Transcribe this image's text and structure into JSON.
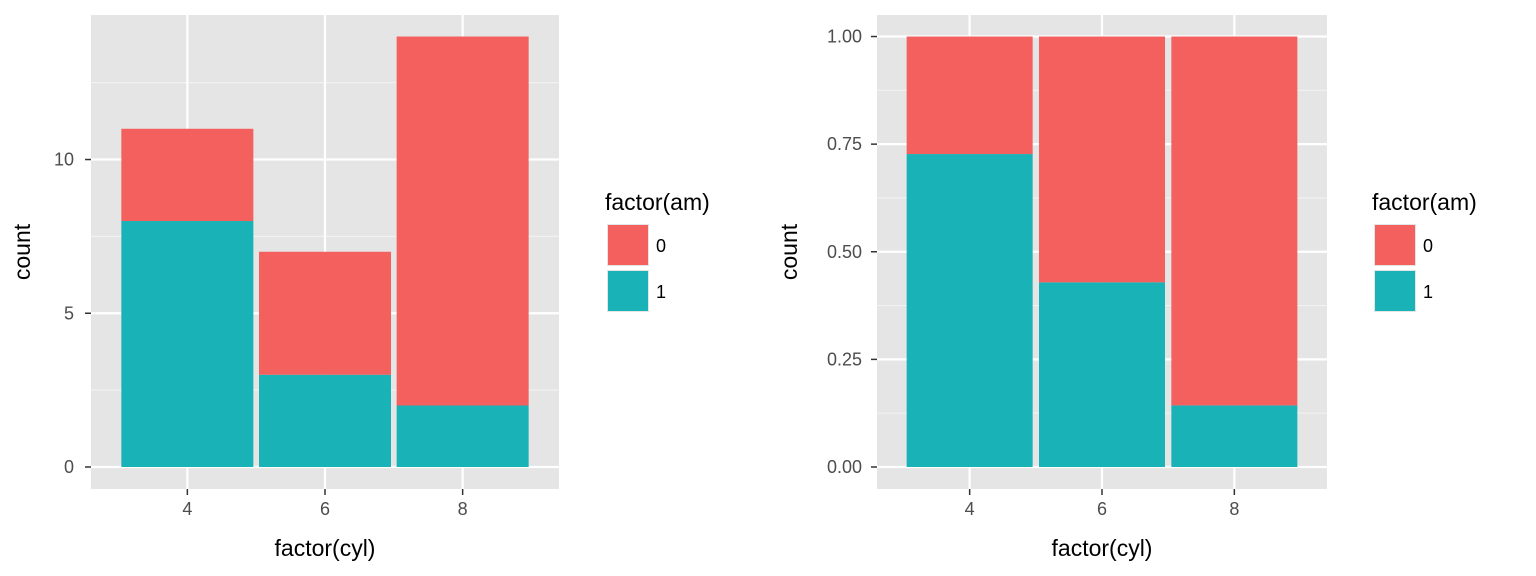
{
  "colors": {
    "panel_background": "#e5e5e5",
    "grid_major": "#ffffff",
    "grid_minor": "#f2f2f2",
    "tick_label": "#4d4d4d",
    "tick_mark": "#333333",
    "series_0": "#f3605d",
    "series_1": "#19b3b7"
  },
  "chart_data": [
    {
      "type": "bar",
      "stacked": true,
      "position": "stack",
      "xlabel": "factor(cyl)",
      "ylabel": "count",
      "categories": [
        "4",
        "6",
        "8"
      ],
      "ylim": [
        0,
        14.7
      ],
      "yticks": [
        0,
        5,
        10
      ],
      "ytick_labels": [
        "0",
        "5",
        "10"
      ],
      "grid": true,
      "legend": {
        "title": "factor(am)",
        "placement": "right",
        "entries": [
          "0",
          "1"
        ]
      },
      "series": [
        {
          "name": "0",
          "color": "#f3605d",
          "values": [
            3,
            4,
            12
          ]
        },
        {
          "name": "1",
          "color": "#19b3b7",
          "values": [
            8,
            3,
            2
          ]
        }
      ]
    },
    {
      "type": "bar",
      "stacked": true,
      "position": "fill",
      "xlabel": "factor(cyl)",
      "ylabel": "count",
      "categories": [
        "4",
        "6",
        "8"
      ],
      "ylim": [
        0,
        1.05
      ],
      "yticks": [
        0,
        0.25,
        0.5,
        0.75,
        1
      ],
      "ytick_labels": [
        "0.00",
        "0.25",
        "0.50",
        "0.75",
        "1.00"
      ],
      "grid": true,
      "legend": {
        "title": "factor(am)",
        "placement": "right",
        "entries": [
          "0",
          "1"
        ]
      },
      "series": [
        {
          "name": "0",
          "color": "#f3605d",
          "values": [
            0.273,
            0.571,
            0.857
          ]
        },
        {
          "name": "1",
          "color": "#19b3b7",
          "values": [
            0.727,
            0.429,
            0.143
          ]
        }
      ]
    }
  ]
}
